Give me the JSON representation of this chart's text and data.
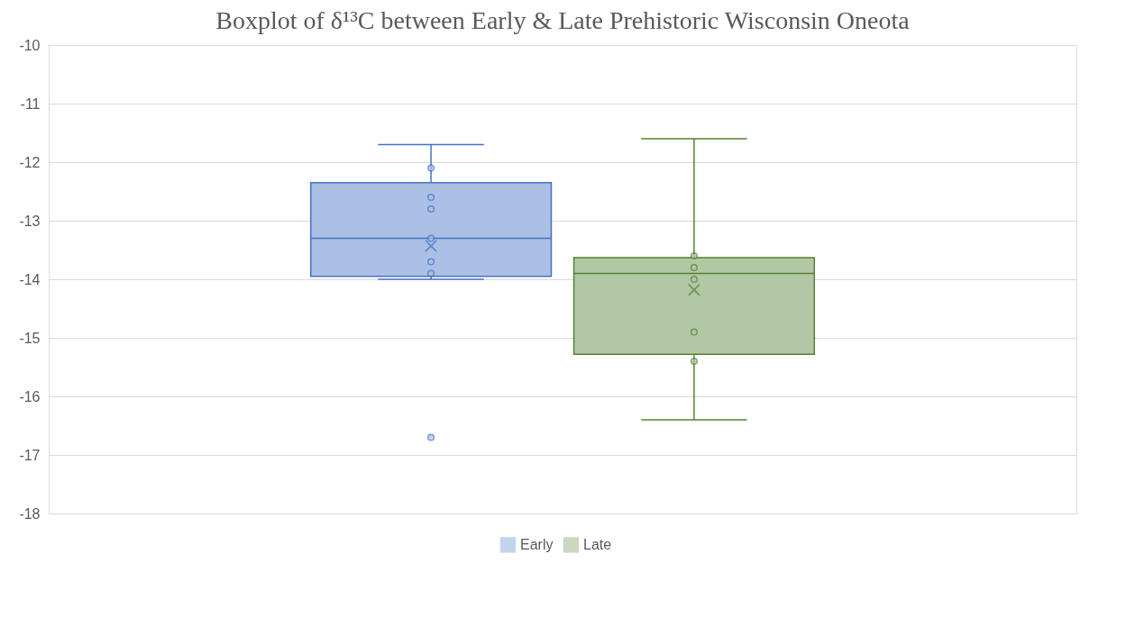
{
  "chart_data": {
    "type": "box",
    "title": "Boxplot of δ¹³C  between Early & Late Prehistoric  Wisconsin Oneota",
    "categories": [
      null
    ],
    "series": [
      {
        "name": "Early",
        "color": "#4472c4",
        "boxes": [
          {
            "low": -14.0,
            "q1": -13.95,
            "median": -13.3,
            "q3": -12.35,
            "high": -11.7,
            "mean": -13.43,
            "outliers": [
              -16.7
            ]
          }
        ]
      },
      {
        "name": "Late",
        "color": "#548235",
        "boxes": [
          {
            "low": -16.4,
            "q1": -15.28,
            "median": -13.9,
            "q3": -13.63,
            "high": -11.6,
            "mean": -14.18
          }
        ]
      },
      {
        "type": "scatter",
        "color": "#4472c4",
        "x": [
          null,
          null,
          null,
          null,
          null,
          null
        ],
        "values": [
          -12.1,
          -12.6,
          -12.8,
          -13.3,
          -13.7,
          -13.9
        ]
      },
      {
        "type": "scatter",
        "color": "#548235",
        "x": [
          null,
          null,
          null,
          null,
          null
        ],
        "values": [
          -13.6,
          -13.8,
          -14.0,
          -14.9,
          -15.4
        ]
      }
    ],
    "ylim": [
      -18,
      -10
    ],
    "yticks": [
      {
        "value": -18,
        "label": "-18"
      },
      {
        "value": -17,
        "label": "-17"
      },
      {
        "value": -16,
        "label": "-16"
      },
      {
        "value": -15,
        "label": "-15"
      },
      {
        "value": -14,
        "label": "-14"
      },
      {
        "value": -13,
        "label": "-13"
      },
      {
        "value": -12,
        "label": "-12"
      },
      {
        "value": -11,
        "label": "-11"
      },
      {
        "value": -10,
        "label": "-10"
      }
    ],
    "grid": "y",
    "legend": "bottom",
    "marker": "circle"
  }
}
